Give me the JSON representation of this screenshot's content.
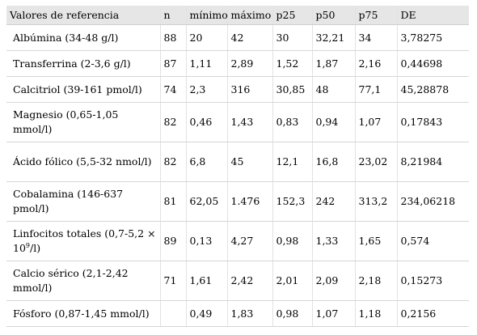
{
  "table": {
    "columns": [
      "Valores de referencia",
      "n",
      "mínimo",
      "máximo",
      "p25",
      "p50",
      "p75",
      "DE"
    ],
    "rows": [
      {
        "label": "Albúmina (34-48 g/l)",
        "n": "88",
        "min": "20",
        "max": "42",
        "p25": "30",
        "p50": "32,21",
        "p75": "34",
        "de": "3,78275"
      },
      {
        "label": "Transferrina (2-3,6 g/l)",
        "n": "87",
        "min": "1,11",
        "max": "2,89",
        "p25": "1,52",
        "p50": "1,87",
        "p75": "2,16",
        "de": "0,44698"
      },
      {
        "label": "Calcitriol (39-161 pmol/l)",
        "n": "74",
        "min": "2,3",
        "max": "316",
        "p25": "30,85",
        "p50": "48",
        "p75": "77,1",
        "de": "45,28878"
      },
      {
        "label": "Magnesio (0,65-1,05 mmol/l)",
        "n": "82",
        "min": "0,46",
        "max": "1,43",
        "p25": "0,83",
        "p50": "0,94",
        "p75": "1,07",
        "de": "0,17843"
      },
      {
        "label": "Ácido fólico (5,5-32 nmol/l)",
        "n": "82",
        "min": "6,8",
        "max": "45",
        "p25": "12,1",
        "p50": "16,8",
        "p75": "23,02",
        "de": "8,21984"
      },
      {
        "label": "Cobalamina (146-637 pmol/l)",
        "n": "81",
        "min": "62,05",
        "max": "1.476",
        "p25": "152,3",
        "p50": "242",
        "p75": "313,2",
        "de": "234,06218"
      },
      {
        "label_pre": "Linfocitos totales (0,7-5,2 × 10",
        "label_sup": "9",
        "label_post": "/l)",
        "n": "89",
        "min": "0,13",
        "max": "4,27",
        "p25": "0,98",
        "p50": "1,33",
        "p75": "1,65",
        "de": "0,574"
      },
      {
        "label": "Calcio sérico (2,1-2,42 mmol/l)",
        "n": "71",
        "min": "1,61",
        "max": "2,42",
        "p25": "2,01",
        "p50": "2,09",
        "p75": "2,18",
        "de": "0,15273"
      },
      {
        "label": "Fósforo (0,87-1,45 mmol/l)",
        "n": "",
        "min": "0,49",
        "max": "1,83",
        "p25": "0,98",
        "p50": "1,07",
        "p75": "1,18",
        "de": "0,2156"
      }
    ]
  }
}
